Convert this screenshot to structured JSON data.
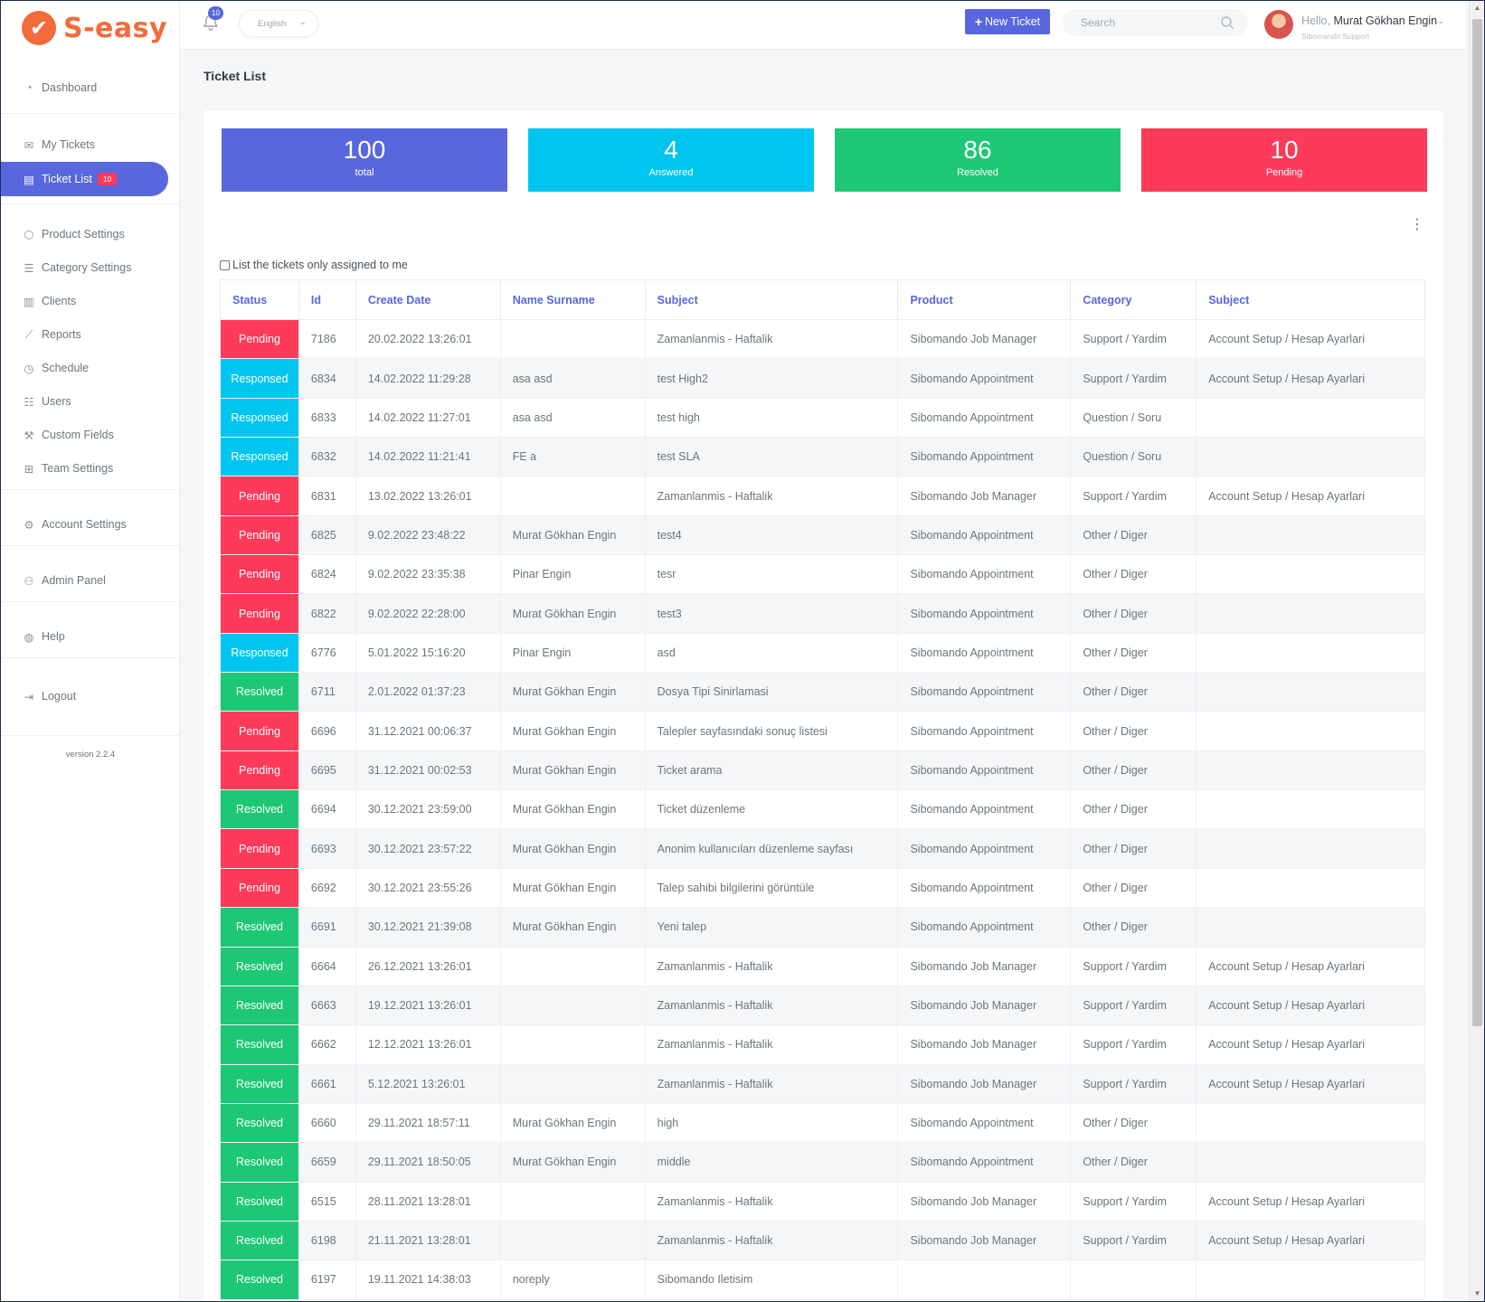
{
  "app": {
    "logo_text": "S-easy",
    "logo_mark": "✔"
  },
  "sidebar": {
    "items": [
      {
        "label": "Dashboard",
        "icon": "dashboard-icon"
      },
      {
        "label": "My Tickets",
        "icon": "mail-icon"
      },
      {
        "label": "Ticket List",
        "icon": "ticket-icon",
        "badge": "10",
        "active": true
      },
      {
        "label": "Product Settings",
        "icon": "box-icon"
      },
      {
        "label": "Category Settings",
        "icon": "list-icon"
      },
      {
        "label": "Clients",
        "icon": "building-icon"
      },
      {
        "label": "Reports",
        "icon": "chart-icon"
      },
      {
        "label": "Schedule",
        "icon": "clock-icon"
      },
      {
        "label": "Users",
        "icon": "users-icon"
      },
      {
        "label": "Custom Fields",
        "icon": "wand-icon"
      },
      {
        "label": "Team Settings",
        "icon": "sitemap-icon"
      },
      {
        "label": "Account Settings",
        "icon": "gear-icon"
      },
      {
        "label": "Admin Panel",
        "icon": "user-cog-icon"
      },
      {
        "label": "Help",
        "icon": "globe-icon"
      },
      {
        "label": "Logout",
        "icon": "logout-icon"
      }
    ],
    "version": "version 2.2.4"
  },
  "topbar": {
    "notification_count": "10",
    "language": "English",
    "new_ticket_label": "New Ticket",
    "search_placeholder": "Search",
    "hello": "Hello,",
    "user_name": "Murat Gökhan Engin",
    "user_org": "Sibomando Support"
  },
  "page": {
    "title": "Ticket List",
    "assigned_only_label": "List the tickets only assigned to me"
  },
  "stats": [
    {
      "value": "100",
      "label": "total",
      "color": "#5867dd"
    },
    {
      "value": "4",
      "label": "Answered",
      "color": "#00c5ee"
    },
    {
      "value": "86",
      "label": "Resolved",
      "color": "#1ec775"
    },
    {
      "value": "10",
      "label": "Pending",
      "color": "#fd3a5a"
    }
  ],
  "status_colors": {
    "Pending": "#fd3a5a",
    "Responsed": "#00c5ee",
    "Resolved": "#1ec775"
  },
  "table": {
    "columns": [
      "Status",
      "Id",
      "Create Date",
      "Name Surname",
      "Subject",
      "Product",
      "Category",
      "Subject"
    ],
    "rows": [
      [
        "Pending",
        "7186",
        "20.02.2022 13:26:01",
        "",
        "Zamanlanmis - Haftalik",
        "Sibomando Job Manager",
        "Support / Yardim",
        "Account Setup / Hesap Ayarlari"
      ],
      [
        "Responsed",
        "6834",
        "14.02.2022 11:29:28",
        "asa asd",
        "test High2",
        "Sibomando Appointment",
        "Support / Yardim",
        "Account Setup / Hesap Ayarlari"
      ],
      [
        "Responsed",
        "6833",
        "14.02.2022 11:27:01",
        "asa asd",
        "test high",
        "Sibomando Appointment",
        "Question / Soru",
        ""
      ],
      [
        "Responsed",
        "6832",
        "14.02.2022 11:21:41",
        "FE a",
        "test SLA",
        "Sibomando Appointment",
        "Question / Soru",
        ""
      ],
      [
        "Pending",
        "6831",
        "13.02.2022 13:26:01",
        "",
        "Zamanlanmis - Haftalik",
        "Sibomando Job Manager",
        "Support / Yardim",
        "Account Setup / Hesap Ayarlari"
      ],
      [
        "Pending",
        "6825",
        "9.02.2022 23:48:22",
        "Murat Gökhan Engin",
        "test4",
        "Sibomando Appointment",
        "Other / Diger",
        ""
      ],
      [
        "Pending",
        "6824",
        "9.02.2022 23:35:38",
        "Pinar Engin",
        "tesr",
        "Sibomando Appointment",
        "Other / Diger",
        ""
      ],
      [
        "Pending",
        "6822",
        "9.02.2022 22:28:00",
        "Murat Gökhan Engin",
        "test3",
        "Sibomando Appointment",
        "Other / Diger",
        ""
      ],
      [
        "Responsed",
        "6776",
        "5.01.2022 15:16:20",
        "Pinar Engin",
        "asd",
        "Sibomando Appointment",
        "Other / Diger",
        ""
      ],
      [
        "Resolved",
        "6711",
        "2.01.2022 01:37:23",
        "Murat Gökhan Engin",
        "Dosya Tipi Sinirlamasi",
        "Sibomando Appointment",
        "Other / Diger",
        ""
      ],
      [
        "Pending",
        "6696",
        "31.12.2021 00:06:37",
        "Murat Gökhan Engin",
        "Talepler sayfasındaki sonuç listesi",
        "Sibomando Appointment",
        "Other / Diger",
        ""
      ],
      [
        "Pending",
        "6695",
        "31.12.2021 00:02:53",
        "Murat Gökhan Engin",
        "Ticket arama",
        "Sibomando Appointment",
        "Other / Diger",
        ""
      ],
      [
        "Resolved",
        "6694",
        "30.12.2021 23:59:00",
        "Murat Gökhan Engin",
        "Ticket düzenleme",
        "Sibomando Appointment",
        "Other / Diger",
        ""
      ],
      [
        "Pending",
        "6693",
        "30.12.2021 23:57:22",
        "Murat Gökhan Engin",
        "Anonim kullanıcıları düzenleme sayfası",
        "Sibomando Appointment",
        "Other / Diger",
        ""
      ],
      [
        "Pending",
        "6692",
        "30.12.2021 23:55:26",
        "Murat Gökhan Engin",
        "Talep sahibi bilgilerini görüntüle",
        "Sibomando Appointment",
        "Other / Diger",
        ""
      ],
      [
        "Resolved",
        "6691",
        "30.12.2021 21:39:08",
        "Murat Gökhan Engin",
        "Yeni talep",
        "Sibomando Appointment",
        "Other / Diger",
        ""
      ],
      [
        "Resolved",
        "6664",
        "26.12.2021 13:26:01",
        "",
        "Zamanlanmis - Haftalik",
        "Sibomando Job Manager",
        "Support / Yardim",
        "Account Setup / Hesap Ayarlari"
      ],
      [
        "Resolved",
        "6663",
        "19.12.2021 13:26:01",
        "",
        "Zamanlanmis - Haftalik",
        "Sibomando Job Manager",
        "Support / Yardim",
        "Account Setup / Hesap Ayarlari"
      ],
      [
        "Resolved",
        "6662",
        "12.12.2021 13:26:01",
        "",
        "Zamanlanmis - Haftalik",
        "Sibomando Job Manager",
        "Support / Yardim",
        "Account Setup / Hesap Ayarlari"
      ],
      [
        "Resolved",
        "6661",
        "5.12.2021 13:26:01",
        "",
        "Zamanlanmis - Haftalik",
        "Sibomando Job Manager",
        "Support / Yardim",
        "Account Setup / Hesap Ayarlari"
      ],
      [
        "Resolved",
        "6660",
        "29.11.2021 18:57:11",
        "Murat Gökhan Engin",
        "high",
        "Sibomando Appointment",
        "Other / Diger",
        ""
      ],
      [
        "Resolved",
        "6659",
        "29.11.2021 18:50:05",
        "Murat Gökhan Engin",
        "middle",
        "Sibomando Appointment",
        "Other / Diger",
        ""
      ],
      [
        "Resolved",
        "6515",
        "28.11.2021 13:28:01",
        "",
        "Zamanlanmis - Haftalik",
        "Sibomando Job Manager",
        "Support / Yardim",
        "Account Setup / Hesap Ayarlari"
      ],
      [
        "Resolved",
        "6198",
        "21.11.2021 13:28:01",
        "",
        "Zamanlanmis - Haftalik",
        "Sibomando Job Manager",
        "Support / Yardim",
        "Account Setup / Hesap Ayarlari"
      ],
      [
        "Resolved",
        "6197",
        "19.11.2021 14:38:03",
        "noreply",
        "Sibomando Iletisim",
        "",
        "",
        ""
      ]
    ]
  }
}
